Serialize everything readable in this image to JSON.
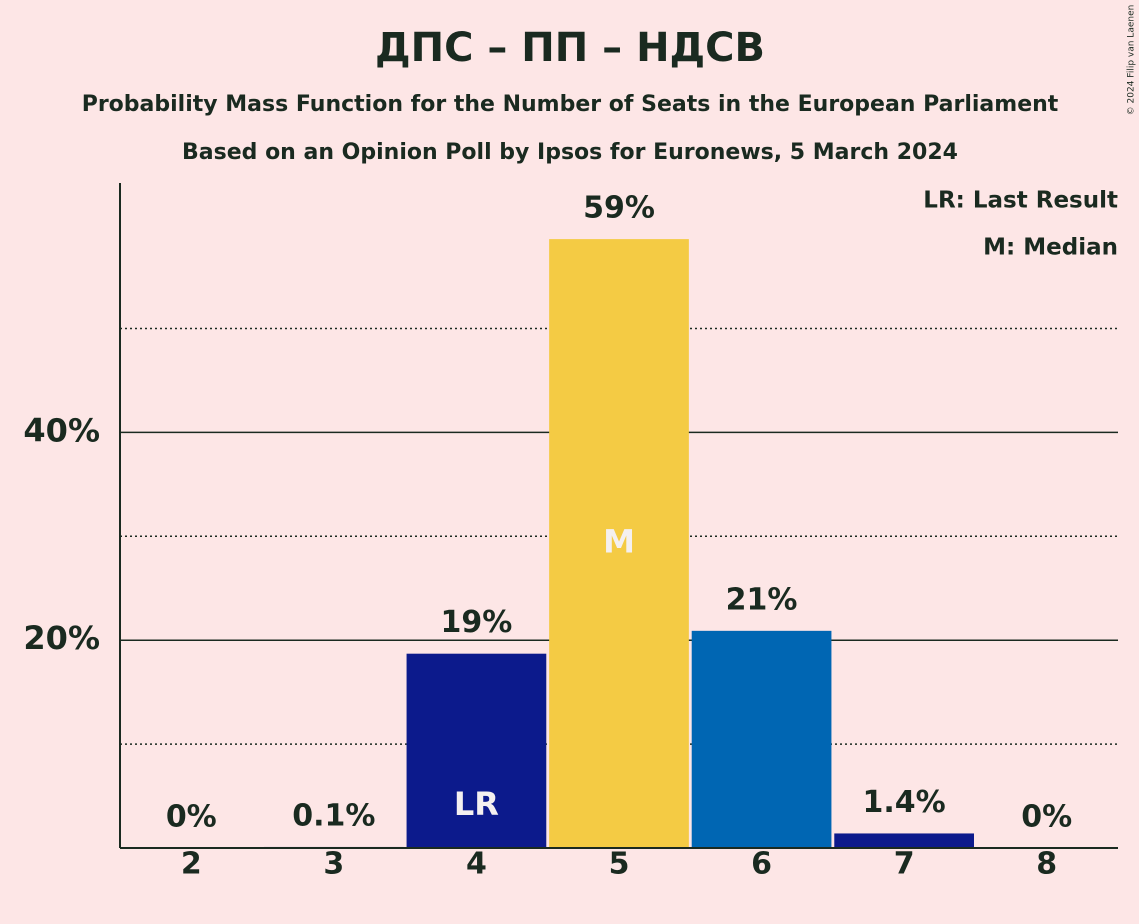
{
  "chart_data": {
    "type": "bar",
    "title": "ДПС – ПП – НДСВ",
    "subtitle": "Probability Mass Function for the Number of Seats in the European Parliament",
    "subtitle2": "Based on an Opinion Poll by Ipsos for Euronews, 5 March 2024",
    "copyright": "© 2024 Filip van Laenen",
    "legend": [
      "LR: Last Result",
      "M: Median"
    ],
    "categories": [
      "2",
      "3",
      "4",
      "5",
      "6",
      "7",
      "8"
    ],
    "values": [
      0,
      0.1,
      18.7,
      58.6,
      20.9,
      1.4,
      0
    ],
    "value_labels": [
      "0%",
      "0.1%",
      "19%",
      "59%",
      "21%",
      "1.4%",
      "0%"
    ],
    "bar_labels": [
      null,
      null,
      "LR",
      "M",
      null,
      null,
      null
    ],
    "colors": [
      "#0c1a8c",
      "#0c1a8c",
      "#0c1a8c",
      "#f4cb44",
      "#0066b3",
      "#0c1a8c",
      "#0c1a8c"
    ],
    "ylim": [
      0,
      64
    ],
    "yticks": [
      {
        "value": 20,
        "label": "20%"
      },
      {
        "value": 40,
        "label": "40%"
      }
    ],
    "minor_yticks": [
      10,
      30,
      50
    ],
    "grid": true
  }
}
